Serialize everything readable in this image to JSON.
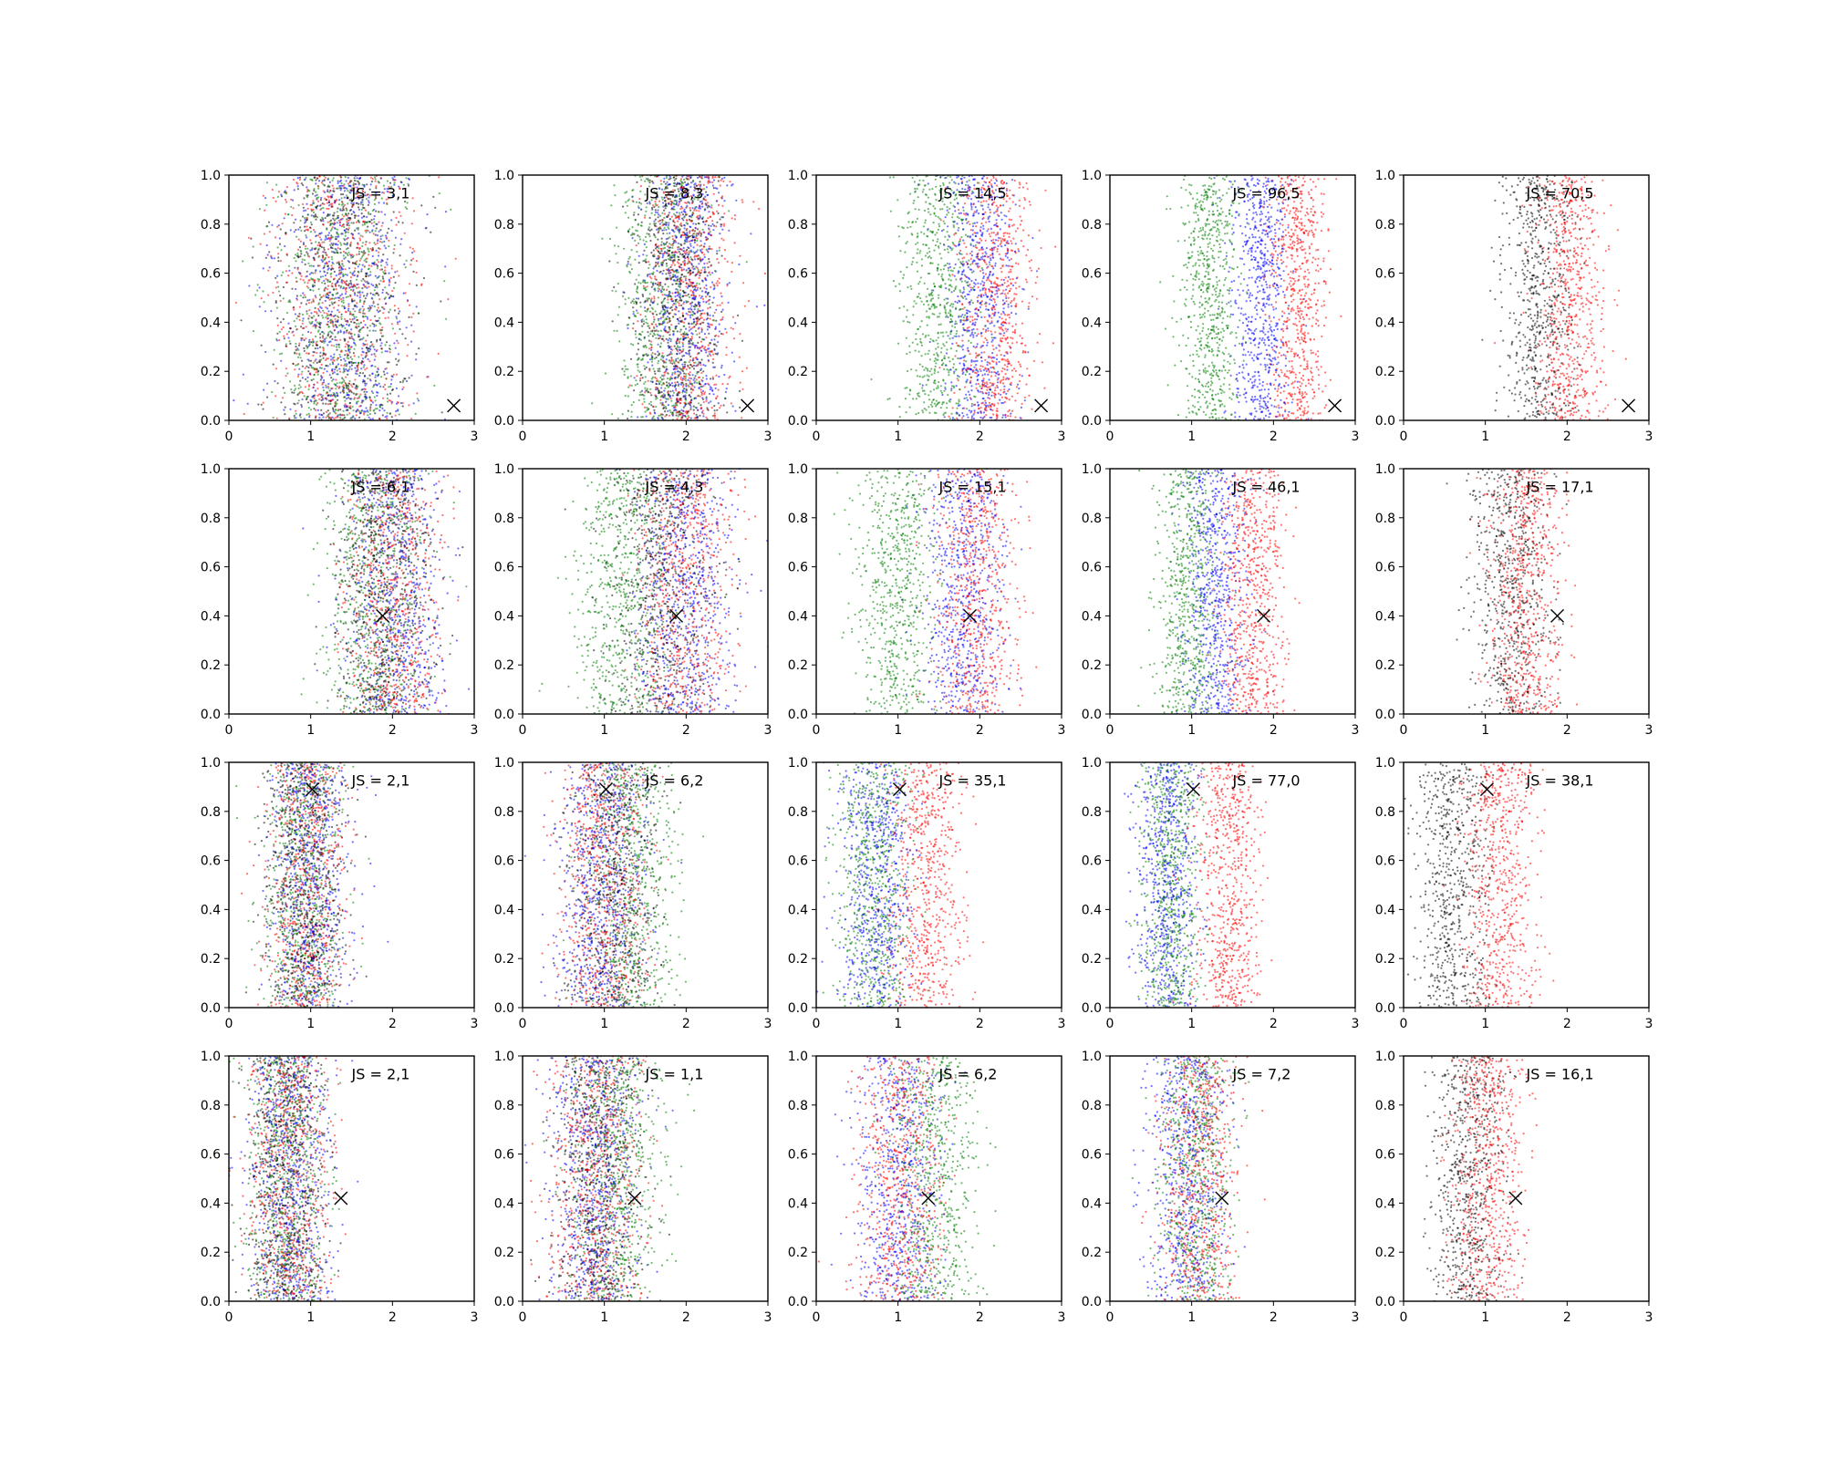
{
  "chart_data": {
    "type": "scatter",
    "layout": "4 rows x 5 columns of small-multiple scatter panels",
    "xlim": [
      0,
      3
    ],
    "ylim": [
      0,
      1
    ],
    "xticks": [
      0,
      1,
      2,
      3
    ],
    "yticks": [
      0.0,
      0.2,
      0.4,
      0.6,
      0.8,
      1.0
    ],
    "xtick_labels": [
      "0",
      "1",
      "2",
      "3"
    ],
    "ytick_labels": [
      "0.0",
      "0.2",
      "0.4",
      "0.6",
      "0.8",
      "1.0"
    ],
    "grid": false,
    "marker_colors": {
      "red": "#ff0000",
      "blue": "#0000ff",
      "green": "#008000",
      "black": "#000000"
    },
    "cross_marker_color": "#000000",
    "column_series": [
      [
        "red",
        "blue",
        "green",
        "black"
      ],
      [
        "red",
        "blue",
        "green",
        "black"
      ],
      [
        "red",
        "blue",
        "green"
      ],
      [
        "red",
        "blue",
        "green"
      ],
      [
        "red",
        "black"
      ]
    ],
    "panels": [
      [
        {
          "label": "JS = 3,1",
          "marker": [
            2.75,
            0.06
          ],
          "centers": {
            "red": 1.4,
            "blue": 1.45,
            "green": 1.35,
            "black": 1.4
          },
          "spread": 0.75
        },
        {
          "label": "JS = 8,3",
          "marker": [
            2.75,
            0.06
          ],
          "centers": {
            "red": 2.05,
            "blue": 2.0,
            "green": 1.7,
            "black": 1.9
          },
          "spread": 0.5
        },
        {
          "label": "JS = 14,5",
          "marker": [
            2.75,
            0.06
          ],
          "centers": {
            "red": 2.2,
            "blue": 2.0,
            "green": 1.5
          },
          "spread": 0.42
        },
        {
          "label": "JS = 96,5",
          "marker": [
            2.75,
            0.06
          ],
          "centers": {
            "red": 2.3,
            "blue": 1.85,
            "green": 1.2
          },
          "spread": 0.32
        },
        {
          "label": "JS = 70,5",
          "marker": [
            2.75,
            0.06
          ],
          "centers": {
            "red": 2.05,
            "black": 1.65
          },
          "spread": 0.38
        }
      ],
      [
        {
          "label": "JS = 6,1",
          "marker": [
            1.88,
            0.4
          ],
          "centers": {
            "red": 2.0,
            "blue": 2.05,
            "green": 1.75,
            "black": 1.9
          },
          "spread": 0.55
        },
        {
          "label": "JS = 4,3",
          "marker": [
            1.88,
            0.4
          ],
          "centers": {
            "red": 2.0,
            "blue": 2.0,
            "green": 1.2,
            "black": 1.7
          },
          "spread": 0.55
        },
        {
          "label": "JS = 15,1",
          "marker": [
            1.88,
            0.4
          ],
          "centers": {
            "red": 1.95,
            "blue": 1.8,
            "green": 1.0
          },
          "spread": 0.45
        },
        {
          "label": "JS = 46,1",
          "marker": [
            1.88,
            0.4
          ],
          "centers": {
            "red": 1.75,
            "blue": 1.3,
            "green": 0.95
          },
          "spread": 0.35
        },
        {
          "label": "JS = 17,1",
          "marker": [
            1.88,
            0.4
          ],
          "centers": {
            "red": 1.5,
            "black": 1.3
          },
          "spread": 0.42
        }
      ],
      [
        {
          "label": "JS = 2,1",
          "marker": [
            1.02,
            0.89
          ],
          "centers": {
            "red": 0.95,
            "blue": 1.0,
            "green": 0.9,
            "black": 0.9
          },
          "spread": 0.45
        },
        {
          "label": "JS = 6,2",
          "marker": [
            1.02,
            0.89
          ],
          "centers": {
            "red": 1.0,
            "blue": 0.95,
            "green": 1.35,
            "black": 1.1
          },
          "spread": 0.5
        },
        {
          "label": "JS = 35,1",
          "marker": [
            1.02,
            0.89
          ],
          "centers": {
            "red": 1.35,
            "blue": 0.75,
            "green": 0.7
          },
          "spread": 0.42
        },
        {
          "label": "JS = 77,0",
          "marker": [
            1.02,
            0.89
          ],
          "centers": {
            "red": 1.45,
            "blue": 0.7,
            "green": 0.75
          },
          "spread": 0.35
        },
        {
          "label": "JS = 38,1",
          "marker": [
            1.02,
            0.89
          ],
          "centers": {
            "red": 1.2,
            "black": 0.6
          },
          "spread": 0.4
        }
      ],
      [
        {
          "label": "JS = 2,1",
          "marker": [
            1.37,
            0.42
          ],
          "centers": {
            "red": 0.75,
            "blue": 0.75,
            "green": 0.7,
            "black": 0.7
          },
          "spread": 0.45
        },
        {
          "label": "JS = 1,1",
          "marker": [
            1.37,
            0.42
          ],
          "centers": {
            "red": 0.9,
            "blue": 0.9,
            "green": 1.15,
            "black": 0.95
          },
          "spread": 0.5
        },
        {
          "label": "JS = 6,2",
          "marker": [
            1.37,
            0.42
          ],
          "centers": {
            "red": 1.0,
            "blue": 1.0,
            "green": 1.45
          },
          "spread": 0.5
        },
        {
          "label": "JS = 7,2",
          "marker": [
            1.37,
            0.42
          ],
          "centers": {
            "red": 1.1,
            "blue": 0.95,
            "green": 1.05
          },
          "spread": 0.42
        },
        {
          "label": "JS = 16,1",
          "marker": [
            1.37,
            0.42
          ],
          "centers": {
            "red": 1.05,
            "black": 0.8
          },
          "spread": 0.4
        }
      ]
    ]
  }
}
